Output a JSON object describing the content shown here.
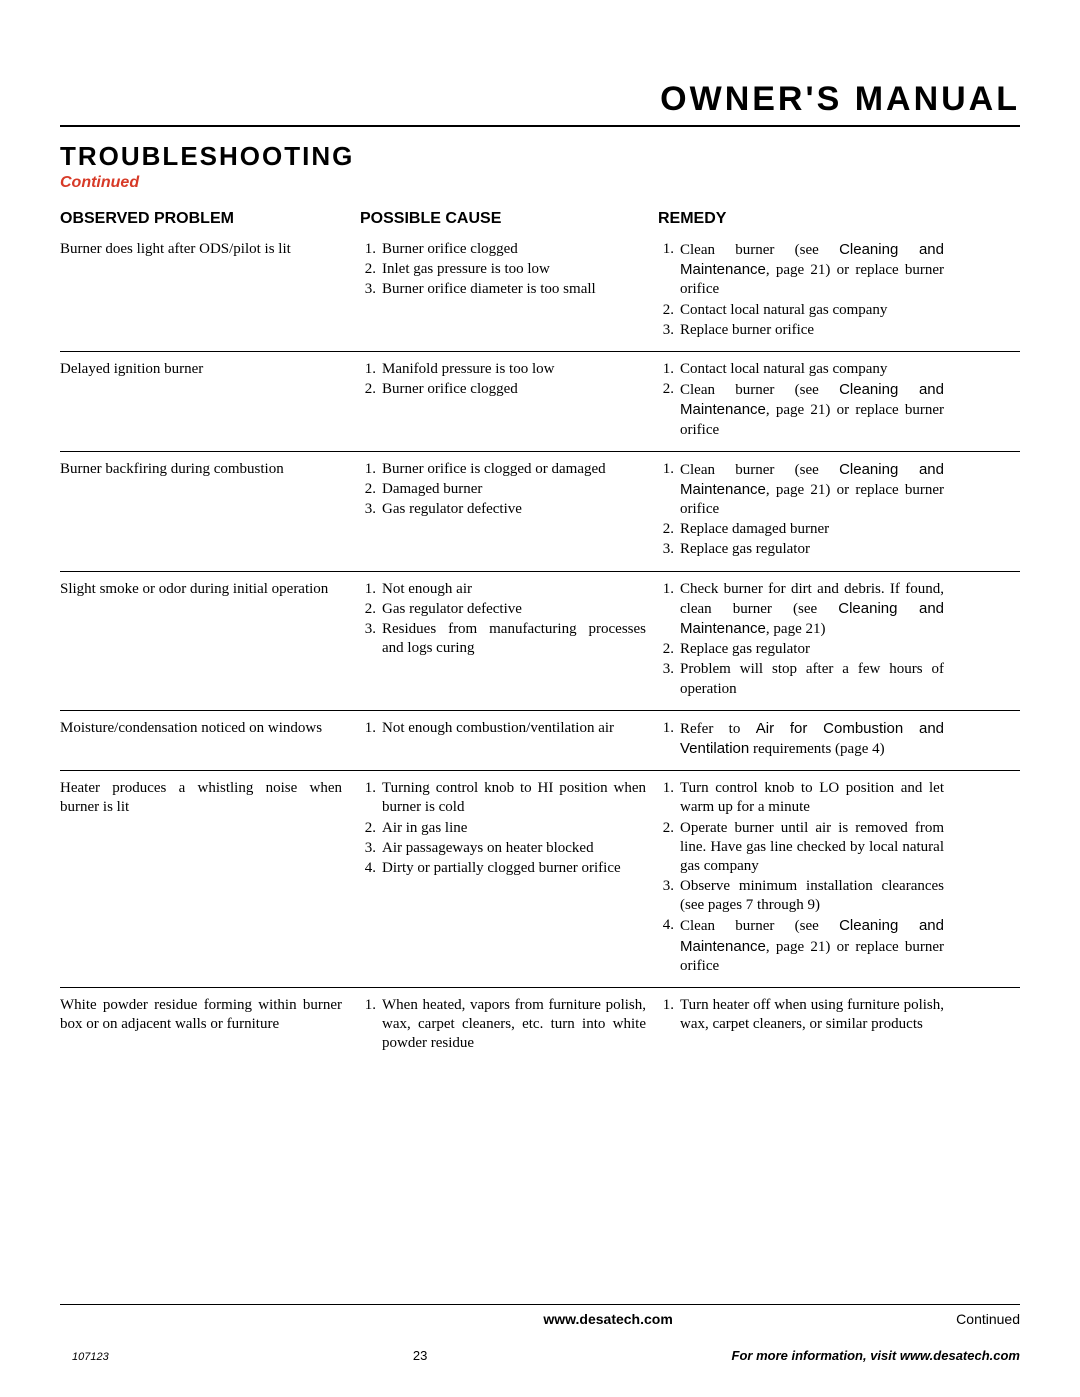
{
  "header": {
    "title": "OWNER'S MANUAL"
  },
  "section": {
    "heading": "TROUBLESHOOTING",
    "subheading": "Continued"
  },
  "columns": {
    "c1": "OBSERVED PROBLEM",
    "c2": "POSSIBLE CAUSE",
    "c3": "REMEDY"
  },
  "rows": [
    {
      "problem": "Burner does light after ODS/pilot is lit",
      "causes": [
        "Burner orifice clogged",
        "Inlet gas pressure is too low",
        "Burner orifice diameter is too small"
      ],
      "remedies": [
        {
          "pre": "Clean burner (see ",
          "sans": "Cleaning and Maintenance",
          "post": ", page 21) or replace burner orifice"
        },
        {
          "pre": "Contact local natural gas company"
        },
        {
          "pre": "Replace burner orifice"
        }
      ]
    },
    {
      "problem": "Delayed ignition burner",
      "causes": [
        "Manifold pressure is too low",
        "Burner orifice clogged"
      ],
      "remedies": [
        {
          "pre": "Contact local natural gas company"
        },
        {
          "pre": "Clean burner (see ",
          "sans": "Cleaning and Maintenance",
          "post": ", page 21) or replace burner orifice"
        }
      ]
    },
    {
      "problem": "Burner backfiring during combustion",
      "causes": [
        "Burner orifice is clogged or damaged",
        "Damaged burner",
        "Gas regulator defective"
      ],
      "remedies": [
        {
          "pre": "Clean burner (see ",
          "sans": "Cleaning and Maintenance",
          "post": ", page 21) or replace burner orifice"
        },
        {
          "pre": "Replace damaged burner"
        },
        {
          "pre": "Replace gas regulator"
        }
      ]
    },
    {
      "problem": "Slight smoke or odor during initial operation",
      "causes": [
        "Not enough air",
        "Gas regulator defective",
        "Residues from manufacturing processes and logs curing"
      ],
      "remedies": [
        {
          "pre": "Check burner for dirt and debris. If found, clean burner (see ",
          "sans": "Cleaning and Maintenance",
          "post": ", page 21)"
        },
        {
          "pre": "Replace gas regulator"
        },
        {
          "pre": "Problem will stop after a few hours of operation"
        }
      ]
    },
    {
      "problem": "Moisture/condensation noticed on windows",
      "causes": [
        "Not enough combustion/ventilation air"
      ],
      "remedies": [
        {
          "pre": "Refer to ",
          "sans": "Air for Combustion and Ventilation",
          "post": " requirements (page 4)"
        }
      ]
    },
    {
      "problem": "Heater produces a whistling noise when burner is lit",
      "causes": [
        "Turning control knob to HI position when burner is cold",
        "Air in gas line",
        "Air passageways on heater blocked",
        "Dirty or partially clogged burner orifice"
      ],
      "remedies": [
        {
          "pre": "Turn control knob to LO position and let warm up for a minute"
        },
        {
          "pre": "Operate burner until air is removed from line. Have gas line checked by local natural gas company"
        },
        {
          "pre": "Observe minimum installation clearances (see pages 7 through 9)"
        },
        {
          "pre": "Clean burner (see ",
          "sans": "Cleaning and Maintenance",
          "post": ", page 21) or replace burner orifice"
        }
      ]
    },
    {
      "problem": "White powder residue forming within burner box or on adjacent walls or furniture",
      "causes": [
        "When heated, vapors from furniture polish, wax, carpet cleaners, etc. turn into white powder residue"
      ],
      "remedies": [
        {
          "pre": "Turn heater off when using furniture polish, wax, carpet cleaners, or similar products"
        }
      ]
    }
  ],
  "footer": {
    "url": "www.desatech.com",
    "continued": "Continued",
    "docnum": "107123",
    "pagenum": "23",
    "moreinfo": "For more information, visit www.desatech.com"
  },
  "colors": {
    "accent_red": "#d73a27",
    "text": "#000000",
    "background": "#ffffff",
    "rule": "#000000"
  }
}
